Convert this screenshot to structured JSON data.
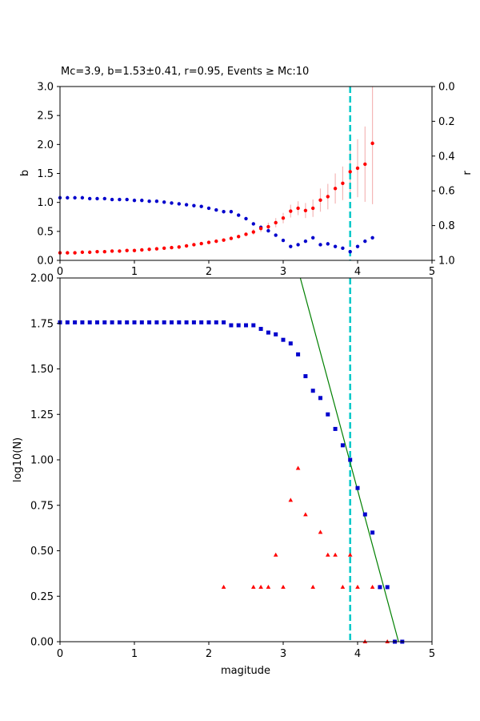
{
  "chart_data": [
    {
      "type": "scatter",
      "title": "Mc=3.9, b=1.53±0.41, r=0.95, Events ≥ Mc:10",
      "xlabel": "",
      "ylabel": "b",
      "y2label": "r",
      "xlim": [
        0,
        5
      ],
      "ylim": [
        0,
        3.0
      ],
      "y2lim": [
        1.0,
        0.0
      ],
      "y2_inverted": true,
      "xticks": [
        "0",
        "1",
        "2",
        "3",
        "4",
        "5"
      ],
      "yticks": [
        "0.0",
        "0.5",
        "1.0",
        "1.5",
        "2.0",
        "2.5",
        "3.0"
      ],
      "y2ticks": [
        "0.0",
        "0.2",
        "0.4",
        "0.6",
        "0.8",
        "1.0"
      ],
      "mc_line": 3.9,
      "colors": {
        "b": "#ff0000",
        "r": "#0000cc",
        "err": "#f4b7b7",
        "mc": "#00c8c8"
      },
      "b_series": {
        "x": [
          0.0,
          0.1,
          0.2,
          0.3,
          0.4,
          0.5,
          0.6,
          0.7,
          0.8,
          0.9,
          1.0,
          1.1,
          1.2,
          1.3,
          1.4,
          1.5,
          1.6,
          1.7,
          1.8,
          1.9,
          2.0,
          2.1,
          2.2,
          2.3,
          2.4,
          2.5,
          2.6,
          2.7,
          2.8,
          2.9,
          3.0,
          3.1,
          3.2,
          3.3,
          3.4,
          3.5,
          3.6,
          3.7,
          3.8,
          3.9,
          4.0,
          4.1,
          4.2
        ],
        "y": [
          0.13,
          0.13,
          0.13,
          0.14,
          0.14,
          0.15,
          0.15,
          0.16,
          0.16,
          0.17,
          0.17,
          0.18,
          0.19,
          0.2,
          0.21,
          0.22,
          0.23,
          0.25,
          0.27,
          0.29,
          0.31,
          0.33,
          0.35,
          0.38,
          0.41,
          0.45,
          0.49,
          0.55,
          0.58,
          0.65,
          0.73,
          0.85,
          0.9,
          0.86,
          0.9,
          1.04,
          1.1,
          1.24,
          1.33,
          1.53,
          1.59,
          1.66,
          2.02
        ],
        "err": [
          0.01,
          0.01,
          0.01,
          0.01,
          0.01,
          0.01,
          0.01,
          0.01,
          0.01,
          0.01,
          0.01,
          0.01,
          0.01,
          0.01,
          0.01,
          0.01,
          0.02,
          0.02,
          0.02,
          0.02,
          0.02,
          0.02,
          0.03,
          0.03,
          0.03,
          0.04,
          0.05,
          0.06,
          0.07,
          0.08,
          0.09,
          0.11,
          0.12,
          0.13,
          0.15,
          0.2,
          0.22,
          0.26,
          0.29,
          0.41,
          0.5,
          0.65,
          1.05
        ]
      },
      "r_series": {
        "x": [
          0.0,
          0.1,
          0.2,
          0.3,
          0.4,
          0.5,
          0.6,
          0.7,
          0.8,
          0.9,
          1.0,
          1.1,
          1.2,
          1.3,
          1.4,
          1.5,
          1.6,
          1.7,
          1.8,
          1.9,
          2.0,
          2.1,
          2.2,
          2.3,
          2.4,
          2.5,
          2.6,
          2.7,
          2.8,
          2.9,
          3.0,
          3.1,
          3.2,
          3.3,
          3.4,
          3.5,
          3.6,
          3.7,
          3.8,
          3.9,
          4.0,
          4.1,
          4.2
        ],
        "y": [
          0.64,
          0.64,
          0.64,
          0.64,
          0.645,
          0.645,
          0.645,
          0.65,
          0.65,
          0.65,
          0.655,
          0.655,
          0.66,
          0.66,
          0.665,
          0.67,
          0.675,
          0.68,
          0.685,
          0.69,
          0.7,
          0.71,
          0.72,
          0.72,
          0.74,
          0.76,
          0.79,
          0.81,
          0.83,
          0.855,
          0.885,
          0.92,
          0.91,
          0.89,
          0.87,
          0.91,
          0.905,
          0.92,
          0.93,
          0.95,
          0.92,
          0.89,
          0.87
        ]
      }
    },
    {
      "type": "scatter",
      "title": "",
      "xlabel": "magitude",
      "ylabel": "log10(N)",
      "xlim": [
        0,
        5
      ],
      "ylim": [
        0,
        2.0
      ],
      "xticks": [
        "0",
        "1",
        "2",
        "3",
        "4",
        "5"
      ],
      "yticks": [
        "0.00",
        "0.25",
        "0.50",
        "0.75",
        "1.00",
        "1.25",
        "1.50",
        "1.75",
        "2.00"
      ],
      "mc_line": 3.9,
      "colors": {
        "cumulative": "#0000cc",
        "noncumulative": "#ff0000",
        "fit": "#008000",
        "mc": "#00c8c8"
      },
      "fit_line": {
        "x": [
          3.23,
          4.55
        ],
        "y": [
          2.0,
          0.0
        ]
      },
      "cumulative": {
        "x": [
          0.0,
          0.1,
          0.2,
          0.3,
          0.4,
          0.5,
          0.6,
          0.7,
          0.8,
          0.9,
          1.0,
          1.1,
          1.2,
          1.3,
          1.4,
          1.5,
          1.6,
          1.7,
          1.8,
          1.9,
          2.0,
          2.1,
          2.2,
          2.3,
          2.4,
          2.5,
          2.6,
          2.7,
          2.8,
          2.9,
          3.0,
          3.1,
          3.2,
          3.3,
          3.4,
          3.5,
          3.6,
          3.7,
          3.8,
          3.9,
          4.0,
          4.1,
          4.2,
          4.3,
          4.4,
          4.5,
          4.6
        ],
        "y": [
          1.756,
          1.756,
          1.756,
          1.756,
          1.756,
          1.756,
          1.756,
          1.756,
          1.756,
          1.756,
          1.756,
          1.756,
          1.756,
          1.756,
          1.756,
          1.756,
          1.756,
          1.756,
          1.756,
          1.756,
          1.756,
          1.756,
          1.756,
          1.74,
          1.74,
          1.74,
          1.74,
          1.72,
          1.7,
          1.69,
          1.66,
          1.64,
          1.58,
          1.46,
          1.38,
          1.34,
          1.25,
          1.17,
          1.08,
          1.0,
          0.845,
          0.7,
          0.6,
          0.3,
          0.3,
          0.0,
          0.0
        ]
      },
      "noncumulative": {
        "x": [
          2.2,
          2.6,
          2.7,
          2.8,
          2.9,
          3.0,
          3.1,
          3.2,
          3.3,
          3.4,
          3.5,
          3.6,
          3.7,
          3.8,
          3.9,
          4.0,
          4.1,
          4.2,
          4.3,
          4.4,
          4.5
        ],
        "y": [
          0.3,
          0.3,
          0.3,
          0.3,
          0.477,
          0.3,
          0.778,
          0.954,
          0.699,
          0.3,
          0.602,
          0.477,
          0.477,
          0.3,
          0.477,
          0.3,
          0.0,
          0.3,
          0.3,
          0.0,
          0.0
        ]
      }
    }
  ]
}
